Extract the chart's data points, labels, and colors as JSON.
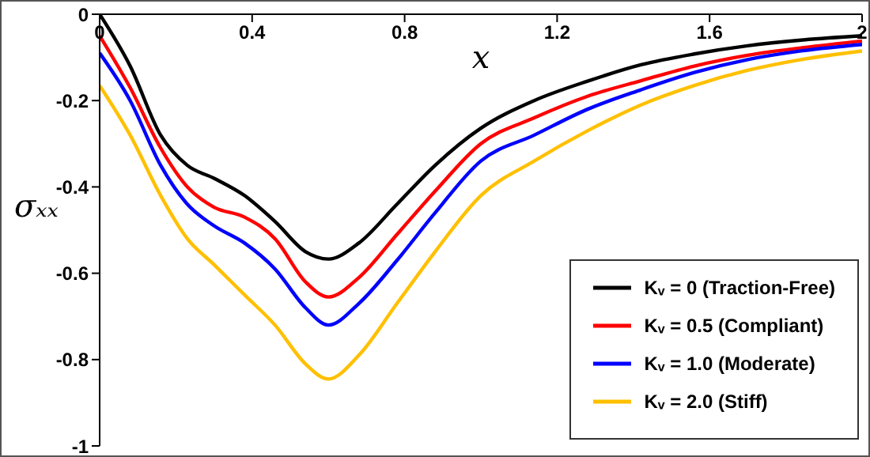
{
  "chart_data": {
    "type": "line",
    "xlabel": "x",
    "ylabel": "σₓₓ",
    "xlim": [
      0,
      2
    ],
    "xticks": [
      0,
      0.4,
      0.8,
      1.2,
      1.6,
      2
    ],
    "ylim": [
      -1,
      0
    ],
    "yticks": [
      0,
      -0.2,
      -0.4,
      -0.6,
      -0.8,
      -1
    ],
    "grid": false,
    "legend": "bottom right",
    "marker": "none",
    "line_style": "solid",
    "x": [
      0,
      0.08,
      0.16,
      0.23,
      0.3,
      0.38,
      0.46,
      0.54,
      0.6,
      0.68,
      0.78,
      0.88,
      1.0,
      1.14,
      1.28,
      1.42,
      1.56,
      1.7,
      1.84,
      2
    ],
    "series": [
      {
        "name": "Kᵥ = 0 (Traction-Free)",
        "color": "#000000",
        "values": [
          0,
          -0.12,
          -0.28,
          -0.35,
          -0.38,
          -0.42,
          -0.48,
          -0.55,
          -0.567,
          -0.53,
          -0.44,
          -0.35,
          -0.264,
          -0.2,
          -0.155,
          -0.117,
          -0.092,
          -0.073,
          -0.06,
          -0.05
        ]
      },
      {
        "name": "Kᵥ = 0.5 (Compliant)",
        "color": "#ff0000",
        "values": [
          -0.05,
          -0.17,
          -0.31,
          -0.4,
          -0.447,
          -0.47,
          -0.52,
          -0.62,
          -0.655,
          -0.61,
          -0.51,
          -0.41,
          -0.3,
          -0.24,
          -0.19,
          -0.154,
          -0.12,
          -0.095,
          -0.078,
          -0.062
        ]
      },
      {
        "name": "Kᵥ = 1.0 (Moderate)",
        "color": "#0000ff",
        "values": [
          -0.09,
          -0.2,
          -0.35,
          -0.44,
          -0.49,
          -0.53,
          -0.59,
          -0.68,
          -0.72,
          -0.67,
          -0.57,
          -0.46,
          -0.34,
          -0.28,
          -0.22,
          -0.175,
          -0.135,
          -0.105,
          -0.085,
          -0.07
        ]
      },
      {
        "name": "Kᵥ = 2.0 (Stiff)",
        "color": "#ffc000",
        "values": [
          -0.165,
          -0.28,
          -0.42,
          -0.52,
          -0.58,
          -0.65,
          -0.72,
          -0.81,
          -0.845,
          -0.79,
          -0.67,
          -0.55,
          -0.42,
          -0.34,
          -0.27,
          -0.21,
          -0.165,
          -0.13,
          -0.105,
          -0.085
        ]
      }
    ]
  }
}
